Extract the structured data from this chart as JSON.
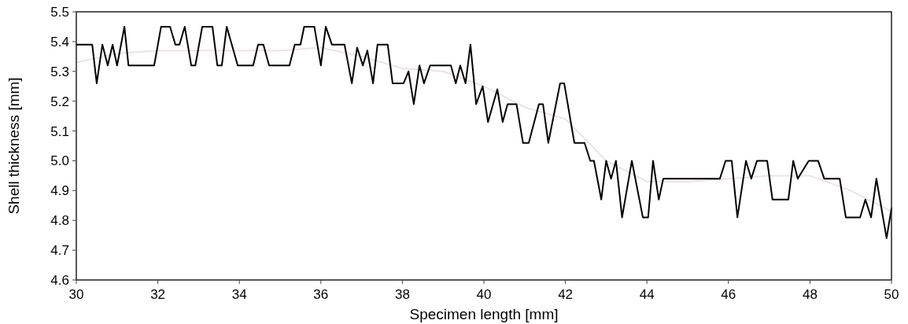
{
  "chart_data": {
    "type": "line",
    "xlabel": "Specimen length [mm]",
    "ylabel": "Shell thickness [mm]",
    "xlim": [
      30,
      50
    ],
    "xticks": [
      30,
      32,
      34,
      36,
      38,
      40,
      42,
      44,
      46,
      48,
      50
    ],
    "ylim": [
      4.6,
      5.5
    ],
    "yticks": [
      {
        "value": 4.6,
        "label": "4.6"
      },
      {
        "value": 4.7,
        "label": "4.7"
      },
      {
        "value": 4.8,
        "label": "4.8"
      },
      {
        "value": 4.9,
        "label": "4.9"
      },
      {
        "value": 5,
        "label": "5.0"
      },
      {
        "value": 5.1,
        "label": "5.1"
      },
      {
        "value": 5.2,
        "label": "5.2"
      },
      {
        "value": 5.3,
        "label": "5.3"
      },
      {
        "value": 5.4,
        "label": "5.4"
      },
      {
        "value": 5.5,
        "label": "5.5"
      }
    ],
    "grid": false,
    "marker": "none",
    "line_style": "solid",
    "series": [
      {
        "color": "#ebe4e4",
        "x": [
          30,
          31,
          32,
          33,
          34,
          35,
          36,
          37,
          38,
          39,
          40,
          41,
          42,
          43,
          44,
          45,
          46,
          47,
          48,
          49,
          50
        ],
        "values": [
          5.33,
          5.36,
          5.37,
          5.37,
          5.37,
          5.37,
          5.38,
          5.35,
          5.31,
          5.3,
          5.25,
          5.18,
          5.14,
          5.0,
          4.93,
          4.93,
          4.94,
          4.95,
          4.95,
          4.9,
          4.83
        ]
      },
      {
        "color": "#000000",
        "x": [
          30,
          30.39,
          30.5,
          30.64,
          30.77,
          30.89,
          31,
          31.18,
          31.28,
          31.91,
          32.08,
          32.3,
          32.43,
          32.53,
          32.66,
          32.82,
          32.92,
          33.09,
          33.34,
          33.46,
          33.57,
          33.69,
          33.96,
          34.34,
          34.46,
          34.59,
          34.73,
          35.23,
          35.36,
          35.5,
          35.59,
          35.84,
          36,
          36.12,
          36.27,
          36.58,
          36.76,
          36.89,
          37.03,
          37.14,
          37.28,
          37.39,
          37.64,
          37.76,
          38.03,
          38.15,
          38.28,
          38.42,
          38.53,
          38.68,
          39.19,
          39.31,
          39.42,
          39.55,
          39.67,
          39.81,
          39.97,
          40.1,
          40.33,
          40.46,
          40.58,
          40.8,
          40.96,
          41.1,
          41.35,
          41.45,
          41.58,
          41.87,
          41.97,
          42.22,
          42.47,
          42.61,
          42.7,
          42.88,
          43,
          43.12,
          43.24,
          43.39,
          43.63,
          43.9,
          44.03,
          44.15,
          44.29,
          44.4,
          45.79,
          45.93,
          46.08,
          46.22,
          46.43,
          46.56,
          46.7,
          46.95,
          47.08,
          47.47,
          47.59,
          47.7,
          47.97,
          48.2,
          48.35,
          48.73,
          48.88,
          49.23,
          49.36,
          49.5,
          49.63,
          49.88,
          50
        ],
        "values": [
          5.39,
          5.39,
          5.26,
          5.39,
          5.32,
          5.39,
          5.32,
          5.45,
          5.32,
          5.32,
          5.45,
          5.45,
          5.39,
          5.39,
          5.45,
          5.32,
          5.32,
          5.45,
          5.45,
          5.32,
          5.32,
          5.45,
          5.32,
          5.32,
          5.39,
          5.39,
          5.32,
          5.32,
          5.39,
          5.39,
          5.45,
          5.45,
          5.32,
          5.45,
          5.39,
          5.39,
          5.26,
          5.38,
          5.32,
          5.37,
          5.26,
          5.39,
          5.39,
          5.26,
          5.26,
          5.3,
          5.19,
          5.32,
          5.26,
          5.32,
          5.32,
          5.26,
          5.32,
          5.26,
          5.39,
          5.19,
          5.25,
          5.13,
          5.24,
          5.13,
          5.19,
          5.19,
          5.06,
          5.06,
          5.19,
          5.19,
          5.06,
          5.26,
          5.26,
          5.06,
          5.06,
          5,
          5,
          4.87,
          5,
          4.94,
          5,
          4.81,
          5,
          4.81,
          4.81,
          5,
          4.87,
          4.94,
          4.94,
          5,
          5,
          4.81,
          5,
          4.94,
          5,
          5,
          4.87,
          4.87,
          5,
          4.94,
          5,
          5,
          4.94,
          4.94,
          4.81,
          4.81,
          4.87,
          4.81,
          4.94,
          4.74,
          4.84
        ]
      }
    ]
  }
}
